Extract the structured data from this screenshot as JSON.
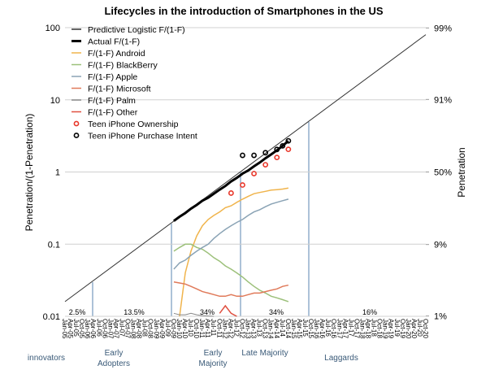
{
  "chart_data": {
    "type": "line",
    "title": "Lifecycles in the introduction of Smartphones in the US",
    "y_label": "Penetration/(1-Penetration)",
    "y2_label": "Penetration",
    "y_scale": "log",
    "y2_scale": "logit",
    "ylim": [
      0.01,
      100
    ],
    "yticks": [
      0.01,
      0.1,
      1,
      10,
      100
    ],
    "y2lim": [
      1,
      99
    ],
    "y2ticks": [
      {
        "value": 1,
        "label": "1%"
      },
      {
        "value": 9,
        "label": "9%"
      },
      {
        "value": 50,
        "label": "50%"
      },
      {
        "value": 91,
        "label": "91%"
      },
      {
        "value": 99,
        "label": "99%"
      }
    ],
    "grid": true,
    "legend": "top-left",
    "categories": [
      "Jan-05",
      "Apr-05",
      "Jul-05",
      "Oct-05",
      "Jan-06",
      "Apr-06",
      "Jul-06",
      "Oct-06",
      "Jan-07",
      "Apr-07",
      "Jul-07",
      "Oct-07",
      "Jan-08",
      "Apr-08",
      "Jul-08",
      "Oct-08",
      "Jan-09",
      "Apr-09",
      "Jul-09",
      "Oct-09",
      "Jan-10",
      "Apr-10",
      "Jul-10",
      "Oct-10",
      "Jan-11",
      "Apr-11",
      "Jul-11",
      "Oct-11",
      "Jan-12",
      "Apr-12",
      "Jul-12",
      "Oct-12",
      "Jan-13",
      "Apr-13",
      "Jul-13",
      "Oct-13",
      "Jan-14",
      "Apr-14",
      "Jul-14",
      "Oct-14",
      "Jan-15",
      "Apr-15",
      "Jul-15",
      "Oct-15",
      "Jan-16",
      "Apr-16",
      "Jul-16",
      "Oct-16",
      "Jan-17",
      "Apr-17",
      "Jul-17",
      "Oct-17",
      "Jan-18",
      "Apr-18",
      "Jul-18",
      "Oct-18",
      "Jan-19",
      "Apr-19",
      "Jul-19",
      "Oct-19",
      "Jan-20",
      "Apr-20",
      "Jul-20",
      "Oct-20"
    ],
    "series": [
      {
        "name": "Predictive Logistic F/(1-F)",
        "color": "#333333",
        "line_width": 1,
        "x": [
          "Jan-05",
          "Oct-20"
        ],
        "values": [
          0.016,
          80
        ]
      },
      {
        "name": "Actual F/(1-F)",
        "color": "#000000",
        "line_width": 3,
        "x": [
          "Oct-09",
          "Jan-10",
          "Apr-10",
          "Jul-10",
          "Oct-10",
          "Jan-11",
          "Apr-11",
          "Jul-11",
          "Oct-11",
          "Jan-12",
          "Apr-12",
          "Jul-12",
          "Oct-12",
          "Jan-13",
          "Apr-13",
          "Jul-13",
          "Oct-13",
          "Jan-14",
          "Apr-14",
          "Jul-14",
          "Oct-14"
        ],
        "values": [
          0.21,
          0.24,
          0.27,
          0.31,
          0.35,
          0.4,
          0.44,
          0.5,
          0.57,
          0.64,
          0.74,
          0.83,
          0.95,
          1.05,
          1.2,
          1.35,
          1.55,
          1.75,
          2.0,
          2.3,
          2.7
        ]
      },
      {
        "name": "F/(1-F) Android",
        "color": "#f0b44c",
        "line_width": 1.5,
        "x": [
          "Jan-10",
          "Apr-10",
          "Jul-10",
          "Oct-10",
          "Jan-11",
          "Apr-11",
          "Jul-11",
          "Oct-11",
          "Jan-12",
          "Apr-12",
          "Jul-12",
          "Oct-12",
          "Jan-13",
          "Apr-13",
          "Jul-13",
          "Oct-13",
          "Jan-14",
          "Apr-14",
          "Jul-14",
          "Oct-14"
        ],
        "values": [
          0.01,
          0.04,
          0.08,
          0.13,
          0.18,
          0.22,
          0.25,
          0.28,
          0.32,
          0.34,
          0.38,
          0.42,
          0.46,
          0.5,
          0.52,
          0.54,
          0.56,
          0.57,
          0.58,
          0.6
        ]
      },
      {
        "name": "F/(1-F) BlackBerry",
        "color": "#9cc07a",
        "line_width": 1.5,
        "x": [
          "Oct-09",
          "Jan-10",
          "Apr-10",
          "Jul-10",
          "Oct-10",
          "Jan-11",
          "Apr-11",
          "Jul-11",
          "Oct-11",
          "Jan-12",
          "Apr-12",
          "Jul-12",
          "Oct-12",
          "Jan-13",
          "Apr-13",
          "Jul-13",
          "Oct-13",
          "Jan-14",
          "Apr-14",
          "Jul-14",
          "Oct-14"
        ],
        "values": [
          0.08,
          0.09,
          0.1,
          0.1,
          0.09,
          0.085,
          0.075,
          0.065,
          0.058,
          0.05,
          0.045,
          0.04,
          0.035,
          0.03,
          0.026,
          0.023,
          0.021,
          0.019,
          0.018,
          0.017,
          0.016
        ]
      },
      {
        "name": "F/(1-F) Apple",
        "color": "#8aa3b5",
        "line_width": 1.5,
        "x": [
          "Oct-09",
          "Jan-10",
          "Apr-10",
          "Jul-10",
          "Oct-10",
          "Jan-11",
          "Apr-11",
          "Jul-11",
          "Oct-11",
          "Jan-12",
          "Apr-12",
          "Jul-12",
          "Oct-12",
          "Jan-13",
          "Apr-13",
          "Jul-13",
          "Oct-13",
          "Jan-14",
          "Apr-14",
          "Jul-14",
          "Oct-14"
        ],
        "values": [
          0.045,
          0.055,
          0.06,
          0.07,
          0.08,
          0.09,
          0.1,
          0.12,
          0.14,
          0.16,
          0.18,
          0.2,
          0.22,
          0.25,
          0.28,
          0.3,
          0.33,
          0.36,
          0.38,
          0.4,
          0.42
        ]
      },
      {
        "name": "F/(1-F) Microsoft",
        "color": "#e07a5a",
        "line_width": 1.5,
        "x": [
          "Oct-09",
          "Jan-10",
          "Apr-10",
          "Jul-10",
          "Oct-10",
          "Jan-11",
          "Apr-11",
          "Jul-11",
          "Oct-11",
          "Jan-12",
          "Apr-12",
          "Jul-12",
          "Oct-12",
          "Jan-13",
          "Apr-13",
          "Jul-13",
          "Oct-13",
          "Jan-14",
          "Apr-14",
          "Jul-14",
          "Oct-14"
        ],
        "values": [
          0.03,
          0.029,
          0.028,
          0.026,
          0.024,
          0.022,
          0.021,
          0.02,
          0.019,
          0.019,
          0.02,
          0.019,
          0.019,
          0.02,
          0.021,
          0.021,
          0.022,
          0.023,
          0.024,
          0.026,
          0.027
        ]
      },
      {
        "name": "F/(1-F) Palm",
        "color": "#888888",
        "line_width": 1,
        "x": [
          "Oct-09",
          "Jan-10",
          "Apr-10",
          "Jul-10",
          "Oct-10",
          "Jan-11",
          "Apr-11",
          "Jul-11"
        ],
        "values": [
          0.011,
          0.0105,
          0.0105,
          0.011,
          0.0105,
          0.0102,
          0.0101,
          0.01
        ]
      },
      {
        "name": " F/(1-F) Other",
        "color": "#e05040",
        "line_width": 1.5,
        "x": [
          "Oct-11",
          "Jan-12",
          "Apr-12",
          "Jul-12"
        ],
        "values": [
          0.011,
          0.014,
          0.011,
          0.01
        ]
      },
      {
        "name": "Teen iPhone Ownership",
        "color": "#e8372a",
        "marker": "circle",
        "x": [
          "Apr-12",
          "Oct-12",
          "Apr-13",
          "Oct-13",
          "Apr-14",
          "Oct-14"
        ],
        "values": [
          0.51,
          0.66,
          0.95,
          1.26,
          1.59,
          2.06
        ]
      },
      {
        "name": "Teen iPhone Purchase Intent",
        "color": "#000000",
        "marker": "circle",
        "x": [
          "Oct-12",
          "Apr-13",
          "Oct-13",
          "Apr-14",
          "Jul-14",
          "Oct-14"
        ],
        "values": [
          1.7,
          1.7,
          1.85,
          2.05,
          2.3,
          2.7
        ]
      }
    ],
    "segments": [
      {
        "share": "2.5%",
        "label": "innovators"
      },
      {
        "share": "13.5%",
        "label": "Early Adopters"
      },
      {
        "share": "34%",
        "label": "Early Majority"
      },
      {
        "share": "34%",
        "label": "Late Majority"
      },
      {
        "share": "16%",
        "label": "Laggards"
      }
    ]
  }
}
